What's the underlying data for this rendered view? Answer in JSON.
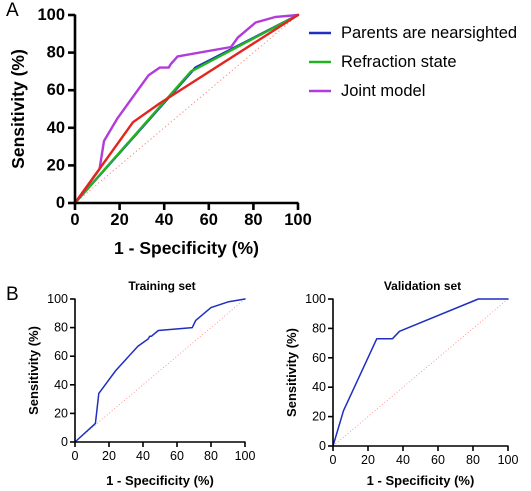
{
  "panels": {
    "a": {
      "letter": "A"
    },
    "b": {
      "letter": "B"
    }
  },
  "chart_data": [
    {
      "type": "line",
      "panel": "A",
      "title": "",
      "xlabel": "1 - Specificity (%)",
      "ylabel": "Sensitivity (%)",
      "xlim": [
        0,
        100
      ],
      "ylim": [
        0,
        100
      ],
      "xticks": [
        0,
        20,
        40,
        60,
        80,
        100
      ],
      "yticks": [
        0,
        20,
        40,
        60,
        80,
        100
      ],
      "grid": false,
      "legend": "right",
      "reference_line": {
        "from": [
          0,
          0
        ],
        "to": [
          100,
          100
        ],
        "color": "#ff8080",
        "style": "dotted"
      },
      "series": [
        {
          "name": "Parents are nearsighted",
          "color": "#1f2fbf",
          "points": [
            [
              0,
              0
            ],
            [
              54,
              72
            ],
            [
              100,
              100
            ]
          ]
        },
        {
          "name": "Refraction state",
          "color": "#22b322",
          "points": [
            [
              0,
              0
            ],
            [
              52,
              70
            ],
            [
              100,
              100
            ]
          ]
        },
        {
          "name": "Joint model",
          "color": "#b23cd9",
          "points": [
            [
              0,
              0
            ],
            [
              11,
              18
            ],
            [
              13,
              33
            ],
            [
              19,
              45
            ],
            [
              33,
              68
            ],
            [
              38,
              72
            ],
            [
              42,
              72
            ],
            [
              43,
              74
            ],
            [
              46,
              78
            ],
            [
              70,
              83
            ],
            [
              73,
              88
            ],
            [
              81,
              96
            ],
            [
              90,
              99
            ],
            [
              100,
              100
            ]
          ]
        },
        {
          "name": "",
          "color": "#e3241f",
          "points": [
            [
              0,
              0
            ],
            [
              26,
              43
            ],
            [
              38,
              53
            ],
            [
              100,
              100
            ]
          ]
        }
      ]
    },
    {
      "type": "line",
      "panel": "B",
      "title": "Training set",
      "xlabel": "1 - Specificity (%)",
      "ylabel": "Sensitivity (%)",
      "xlim": [
        0,
        100
      ],
      "ylim": [
        0,
        100
      ],
      "xticks": [
        0,
        20,
        40,
        60,
        80,
        100
      ],
      "yticks": [
        0,
        20,
        40,
        60,
        80,
        100
      ],
      "grid": false,
      "legend": "none",
      "reference_line": {
        "from": [
          0,
          0
        ],
        "to": [
          100,
          100
        ],
        "color": "#ff8080",
        "style": "dotted"
      },
      "series": [
        {
          "name": "",
          "color": "#1f2fbf",
          "points": [
            [
              0,
              0
            ],
            [
              12,
              13
            ],
            [
              14,
              34
            ],
            [
              24,
              50
            ],
            [
              37,
              67
            ],
            [
              43,
              72
            ],
            [
              44,
              74
            ],
            [
              45,
              74
            ],
            [
              49,
              78
            ],
            [
              69,
              80
            ],
            [
              71,
              85
            ],
            [
              80,
              94
            ],
            [
              90,
              98
            ],
            [
              100,
              100
            ]
          ]
        }
      ]
    },
    {
      "type": "line",
      "panel": "B",
      "title": "Validation set",
      "xlabel": "1 - Specificity (%)",
      "ylabel": "Sensitivity (%)",
      "xlim": [
        0,
        100
      ],
      "ylim": [
        0,
        100
      ],
      "xticks": [
        0,
        20,
        40,
        60,
        80,
        100
      ],
      "yticks": [
        0,
        20,
        40,
        60,
        80,
        100
      ],
      "grid": false,
      "legend": "none",
      "reference_line": {
        "from": [
          0,
          0
        ],
        "to": [
          100,
          100
        ],
        "color": "#ff8080",
        "style": "dotted"
      },
      "series": [
        {
          "name": "",
          "color": "#1f2fbf",
          "points": [
            [
              0,
              0
            ],
            [
              6,
              24
            ],
            [
              25,
              73
            ],
            [
              34,
              73
            ],
            [
              38,
              78
            ],
            [
              83,
              100
            ],
            [
              100,
              100
            ]
          ]
        }
      ]
    }
  ]
}
